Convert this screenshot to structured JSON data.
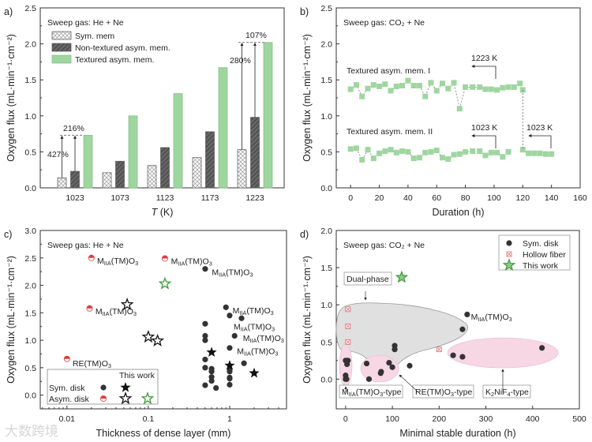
{
  "watermark": "大数跨境",
  "chart_data": [
    {
      "panel": "a)",
      "type": "bar",
      "title": "",
      "note": "Sweep gas: He + Ne",
      "xlabel_italic": "T",
      "xlabel_rest": " (K)",
      "ylabel": "Oxygen flux (mL·min⁻¹·cm⁻²)",
      "ylim": [
        0,
        2.5
      ],
      "yticks": [
        "0.0",
        "0.5",
        "1.0",
        "1.5",
        "2.0",
        "2.5"
      ],
      "categories": [
        "1023",
        "1073",
        "1123",
        "1173",
        "1223"
      ],
      "series": [
        {
          "name": "Sym. mem",
          "values": [
            0.14,
            0.21,
            0.31,
            0.42,
            0.53
          ]
        },
        {
          "name": "Non-textured asym. mem.",
          "values": [
            0.23,
            0.37,
            0.56,
            0.78,
            0.98
          ]
        },
        {
          "name": "Textured asym. mem.",
          "values": [
            0.73,
            1.0,
            1.31,
            1.67,
            2.02
          ],
          "color": "#9fd6a0"
        }
      ],
      "annotations": [
        "427%",
        "216%",
        "280%",
        "107%"
      ],
      "legend": "top-left"
    },
    {
      "panel": "b)",
      "type": "scatter",
      "note": "Sweep gas: CO₂ + Ne",
      "xlabel": "Duration (h)",
      "ylabel": "Oxygen flux (mL·min⁻¹·cm⁻²)",
      "xlim": [
        -10,
        160
      ],
      "ylim": [
        0,
        2.5
      ],
      "xticks": [
        "0",
        "20",
        "40",
        "60",
        "80",
        "100",
        "120",
        "140",
        "160"
      ],
      "yticks": [
        "0.0",
        "0.5",
        "1.0",
        "1.5",
        "2.0",
        "2.5"
      ],
      "series": [
        {
          "name": "Textured asym. mem. I",
          "color": "#9fd6a0",
          "x": [
            0,
            4,
            8,
            12,
            16,
            20,
            24,
            28,
            32,
            36,
            40,
            44,
            48,
            52,
            56,
            60,
            64,
            68,
            72,
            76,
            80,
            85,
            90,
            94,
            98,
            102,
            106,
            110,
            114,
            118,
            120
          ],
          "y": [
            1.37,
            1.43,
            1.27,
            1.38,
            1.43,
            1.41,
            1.44,
            1.35,
            1.41,
            1.42,
            1.49,
            1.42,
            1.42,
            1.27,
            1.46,
            1.35,
            1.45,
            1.38,
            1.46,
            1.1,
            1.4,
            1.4,
            1.4,
            1.37,
            1.37,
            1.36,
            1.39,
            1.4,
            1.4,
            1.45,
            1.36
          ]
        },
        {
          "name": "Textured asym. mem. II",
          "color": "#9fd6a0",
          "x": [
            0,
            4,
            8,
            12,
            16,
            20,
            24,
            28,
            32,
            36,
            40,
            44,
            48,
            52,
            56,
            60,
            64,
            68,
            72,
            76,
            80,
            85,
            90,
            94,
            98,
            102,
            106,
            110
          ],
          "y": [
            0.54,
            0.55,
            0.39,
            0.53,
            0.41,
            0.48,
            0.51,
            0.53,
            0.49,
            0.51,
            0.5,
            0.41,
            0.42,
            0.49,
            0.5,
            0.52,
            0.42,
            0.4,
            0.46,
            0.47,
            0.5,
            0.51,
            0.51,
            0.45,
            0.49,
            0.49,
            0.43,
            0.5
          ]
        },
        {
          "name": "Textured asym. mem. I (after switch)",
          "color": "#9fd6a0",
          "x": [
            120,
            124,
            128,
            132,
            136,
            140
          ],
          "y": [
            0.53,
            0.48,
            0.48,
            0.48,
            0.47,
            0.47
          ]
        }
      ],
      "annotations": [
        "1223 K",
        "1023 K",
        "1023 K"
      ]
    },
    {
      "panel": "c)",
      "type": "scatter",
      "note": "Sweep gas: He + Ne",
      "xlabel": "Thickness of dense layer (mm)",
      "ylabel": "Oxygen flux (mL·min⁻¹·cm⁻²)",
      "xscale": "log",
      "xlim": [
        0.0047,
        5
      ],
      "ylim": [
        -0.25,
        3.0
      ],
      "xticks": [
        "0.01",
        "0.1",
        "1"
      ],
      "yticks": [
        "0.0",
        "0.5",
        "1.0",
        "1.5",
        "2.0",
        "2.5",
        "3.0"
      ],
      "series": [
        {
          "name": "Sym. disk",
          "marker": "circle",
          "color": "#333333",
          "x": [
            0.5,
            0.9,
            1.0,
            1.4,
            1.15,
            1.0,
            1.5,
            0.5,
            0.5,
            0.5,
            0.5,
            0.5,
            0.5,
            0.6,
            0.6,
            0.6,
            0.6,
            0.68,
            1.0,
            1.0,
            1.0,
            1.0,
            1.0
          ],
          "y": [
            2.3,
            1.6,
            1.45,
            1.4,
            1.08,
            0.86,
            0.58,
            1.3,
            1.08,
            1.0,
            0.65,
            0.5,
            0.18,
            0.48,
            0.43,
            0.33,
            0.26,
            0.13,
            0.48,
            0.43,
            0.32,
            0.3,
            0.19
          ]
        },
        {
          "name": "Asym. disk",
          "marker": "half-circle",
          "color": "#e03c3c",
          "x": [
            0.02,
            0.16,
            0.019,
            0.01
          ],
          "y": [
            2.5,
            2.49,
            1.58,
            0.66
          ]
        },
        {
          "name": "This work Sym. disk",
          "marker": "star",
          "color": "#111111",
          "x": [
            0.6,
            1.0,
            2.0
          ],
          "y": [
            0.78,
            0.54,
            0.4
          ]
        },
        {
          "name": "This work Asym. disk",
          "marker": "hollow-star",
          "color": "#111111",
          "x": [
            0.055,
            0.1,
            0.13
          ],
          "y": [
            1.65,
            1.06,
            0.99
          ]
        },
        {
          "name": "This work Asym. disk (textured)",
          "marker": "hollow-star",
          "color": "#3f9a3a",
          "x": [
            0.16
          ],
          "y": [
            2.03
          ]
        }
      ],
      "labels": [
        {
          "text": "M_{IIA}(TM)O_{3}",
          "color": "#e03c3c",
          "x": 0.021,
          "y": 2.47
        },
        {
          "text": "M_{IIA}(TM)O_{3}",
          "color": "#e03c3c",
          "x": 0.17,
          "y": 2.46
        },
        {
          "text": "M_{IIA}(TM)O_{3}",
          "color": "#e03c3c",
          "x": 0.02,
          "y": 1.55
        },
        {
          "text": "RE(TM)O_{3}",
          "color": "#e03c3c",
          "x": 0.0105,
          "y": 0.6
        },
        {
          "text": "M_{IIA}(TM)O_{3}",
          "color": "#222222",
          "x": 0.54,
          "y": 2.26
        },
        {
          "text": "M_{IIA}(TM)O_{3}",
          "color": "#222222",
          "x": 0.97,
          "y": 1.56
        },
        {
          "text": "M_{IIA}(TM)O_{3}",
          "color": "#222222",
          "x": 1.0,
          "y": 1.27
        },
        {
          "text": "M_{IIA}(TM)O_{3}",
          "color": "#222222",
          "x": 1.3,
          "y": 1.06
        },
        {
          "text": "M_{IIA}(TM)O_{3}",
          "color": "#222222",
          "x": 1.1,
          "y": 0.82
        }
      ],
      "legend": {
        "header": "This work",
        "rows": [
          "Sym. disk",
          "Asym. disk"
        ],
        "placement": "bottom-left"
      }
    },
    {
      "panel": "d)",
      "type": "scatter",
      "note": "Sweep gas: CO₂ + Ne",
      "xlabel": "Minimal stable duration (h)",
      "ylabel": "Oxygen flux (mL·min⁻¹·cm⁻²)",
      "xlim": [
        -20,
        500
      ],
      "ylim": [
        -0.4,
        2.0
      ],
      "xticks": [
        "0",
        "100",
        "200",
        "300",
        "400",
        "500"
      ],
      "yticks": [
        "0.0",
        "0.5",
        "1.0",
        "1.5",
        "2.0"
      ],
      "series": [
        {
          "name": "Sym. disk",
          "marker": "circle",
          "color": "#333333",
          "x": [
            0,
            5,
            3,
            0,
            0,
            2,
            45,
            50,
            75,
            76,
            93,
            100,
            105,
            105,
            137,
            250,
            260,
            230,
            250,
            420
          ],
          "y": [
            0.25,
            0.25,
            0.2,
            0.05,
            0,
            0,
            0.21,
            0,
            0.08,
            0.1,
            0.22,
            0.16,
            0.45,
            0.4,
            0.18,
            0.67,
            0.87,
            0.32,
            0.3,
            0.42
          ]
        },
        {
          "name": "Hollow fiber",
          "marker": "crossed-square",
          "color": "#e06060",
          "x": [
            5,
            5,
            5,
            200
          ],
          "y": [
            0.94,
            0.71,
            0.5,
            0.4
          ]
        },
        {
          "name": "This work",
          "marker": "star",
          "color": "#3f9a3a",
          "x": [
            120
          ],
          "y": [
            1.37
          ]
        }
      ],
      "labels": [
        {
          "text": "M_{IIA}(TM)O_{3}",
          "x": 268,
          "y": 0.84
        },
        {
          "text": "Dual-phase",
          "boxed": true
        },
        {
          "text": "M_{IIA}(TM)O_{3}-type",
          "boxed": true
        },
        {
          "text": "RE(TM)O_{3}-type",
          "boxed": true
        },
        {
          "text": "K_{2}NiF_{4}-type",
          "boxed": true
        }
      ],
      "legend": "top-right"
    }
  ]
}
